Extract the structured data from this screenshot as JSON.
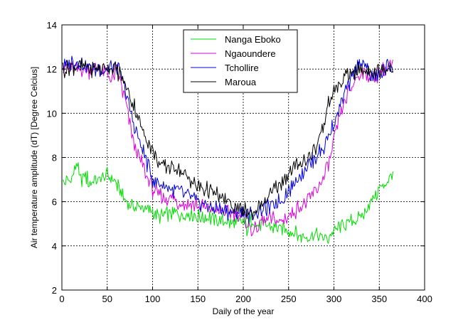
{
  "chart_data": {
    "type": "line",
    "title": "",
    "xlabel": "Daily of the year",
    "ylabel": "Air temperature amplitude (dT) [Degree Celcius]",
    "xlim": [
      0,
      400
    ],
    "ylim": [
      2,
      14
    ],
    "xticks": [
      0,
      50,
      100,
      150,
      200,
      250,
      300,
      350,
      400
    ],
    "yticks": [
      2,
      4,
      6,
      8,
      10,
      12,
      14
    ],
    "xtick_labels": [
      "0",
      "50",
      "100",
      "150",
      "200",
      "250",
      "300",
      "350",
      "400"
    ],
    "ytick_labels": [
      "2",
      "4",
      "6",
      "8",
      "10",
      "12",
      "14"
    ],
    "grid": true,
    "legend_position": "top-center",
    "series": [
      {
        "name": "Nanga Eboko",
        "color": "#00dd00",
        "x": [
          1,
          10,
          17,
          20,
          25,
          30,
          40,
          50,
          55,
          60,
          65,
          70,
          75,
          80,
          90,
          100,
          110,
          120,
          130,
          140,
          150,
          160,
          170,
          180,
          190,
          200,
          205,
          210,
          215,
          220,
          230,
          240,
          250,
          260,
          265,
          270,
          275,
          280,
          290,
          295,
          300,
          310,
          320,
          330,
          335,
          340,
          345,
          350,
          355,
          360,
          365
        ],
        "y": [
          6.8,
          7.0,
          7.8,
          6.9,
          7.2,
          6.9,
          7.0,
          7.2,
          7.1,
          6.8,
          6.4,
          6.0,
          5.9,
          5.8,
          5.7,
          5.5,
          5.3,
          5.5,
          5.4,
          5.5,
          5.3,
          5.3,
          5.2,
          5.1,
          5.0,
          5.1,
          4.7,
          5.3,
          5.0,
          5.0,
          4.9,
          4.8,
          4.7,
          4.5,
          4.4,
          4.3,
          4.5,
          4.5,
          4.3,
          4.4,
          4.7,
          4.9,
          5.1,
          5.3,
          5.6,
          6.0,
          6.3,
          6.5,
          6.8,
          7.0,
          7.4
        ]
      },
      {
        "name": "Ngaoundere",
        "color": "#dd00dd",
        "x": [
          1,
          10,
          20,
          30,
          40,
          50,
          55,
          60,
          65,
          70,
          75,
          80,
          85,
          90,
          95,
          100,
          105,
          110,
          120,
          130,
          140,
          150,
          160,
          170,
          180,
          190,
          200,
          205,
          210,
          220,
          230,
          240,
          250,
          260,
          270,
          275,
          280,
          290,
          295,
          300,
          305,
          310,
          320,
          330,
          340,
          345,
          350,
          360,
          365
        ],
        "y": [
          12.0,
          12.1,
          12.0,
          11.9,
          12.0,
          11.8,
          11.5,
          12.0,
          11.3,
          10.5,
          9.5,
          8.6,
          8.0,
          7.5,
          7.0,
          6.6,
          6.4,
          6.2,
          6.1,
          6.0,
          5.9,
          5.8,
          5.7,
          5.6,
          5.5,
          5.5,
          5.3,
          5.0,
          4.6,
          5.1,
          5.2,
          5.1,
          5.3,
          5.7,
          6.0,
          6.2,
          6.5,
          7.2,
          7.8,
          8.7,
          9.6,
          10.3,
          11.3,
          11.9,
          11.7,
          11.5,
          11.8,
          12.0,
          12.2
        ]
      },
      {
        "name": "Tchollire",
        "color": "#0000dd",
        "x": [
          1,
          10,
          20,
          30,
          40,
          50,
          55,
          60,
          65,
          70,
          75,
          80,
          85,
          90,
          95,
          100,
          110,
          120,
          130,
          140,
          150,
          160,
          170,
          180,
          190,
          200,
          210,
          220,
          230,
          240,
          250,
          260,
          270,
          280,
          290,
          300,
          310,
          320,
          330,
          340,
          345,
          350,
          360,
          365
        ],
        "y": [
          12.1,
          12.3,
          12.3,
          12.1,
          12.0,
          12.0,
          12.1,
          12.0,
          11.8,
          11.0,
          10.2,
          9.4,
          8.8,
          8.2,
          7.6,
          7.0,
          6.8,
          6.6,
          6.4,
          6.2,
          6.0,
          5.8,
          5.7,
          5.6,
          5.5,
          5.5,
          5.4,
          5.6,
          5.8,
          6.0,
          6.5,
          7.1,
          7.6,
          8.0,
          8.5,
          9.5,
          10.8,
          11.6,
          12.4,
          11.8,
          11.6,
          11.7,
          12.1,
          12.2
        ]
      },
      {
        "name": "Maroua",
        "color": "#000000",
        "x": [
          1,
          10,
          20,
          30,
          40,
          50,
          55,
          60,
          65,
          70,
          75,
          80,
          85,
          90,
          95,
          100,
          105,
          110,
          120,
          130,
          140,
          150,
          160,
          170,
          180,
          190,
          200,
          210,
          220,
          230,
          240,
          250,
          260,
          270,
          280,
          285,
          290,
          295,
          300,
          310,
          320,
          330,
          340,
          350,
          360,
          365
        ],
        "y": [
          12.0,
          12.1,
          12.1,
          12.0,
          12.0,
          12.1,
          12.0,
          11.9,
          11.7,
          11.3,
          10.8,
          10.3,
          9.7,
          9.1,
          8.7,
          8.3,
          7.9,
          7.6,
          7.6,
          7.5,
          7.0,
          6.7,
          6.5,
          6.3,
          6.1,
          5.8,
          5.6,
          5.5,
          5.9,
          6.3,
          6.8,
          7.3,
          7.7,
          7.9,
          8.4,
          9.0,
          9.8,
          10.5,
          11.0,
          11.5,
          11.8,
          12.0,
          11.9,
          11.9,
          12.1,
          12.1
        ]
      }
    ]
  }
}
